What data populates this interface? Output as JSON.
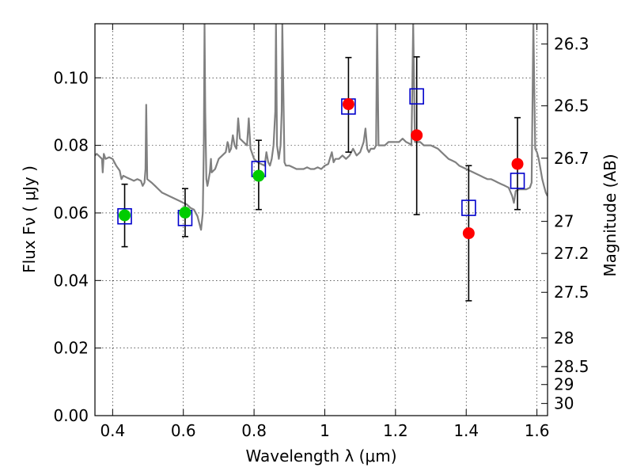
{
  "chart_data": {
    "type": "scatter",
    "xlabel": "Wavelength  λ (μm)",
    "ylabel": "Flux  Fν  ( μJy )",
    "y2label": "Magnitude (AB)",
    "xlim": [
      0.35,
      1.63
    ],
    "ylim": [
      0.0,
      0.116
    ],
    "grid": true,
    "x_ticks": [
      {
        "value": 0.4,
        "label": "0.4"
      },
      {
        "value": 0.6,
        "label": "0.6"
      },
      {
        "value": 0.8,
        "label": "0.8"
      },
      {
        "value": 1.0,
        "label": "1"
      },
      {
        "value": 1.2,
        "label": "1.2"
      },
      {
        "value": 1.4,
        "label": "1.4"
      },
      {
        "value": 1.6,
        "label": "1.6"
      }
    ],
    "y_ticks": [
      {
        "value": 0.0,
        "label": "0.00"
      },
      {
        "value": 0.02,
        "label": "0.02"
      },
      {
        "value": 0.04,
        "label": "0.04"
      },
      {
        "value": 0.06,
        "label": "0.06"
      },
      {
        "value": 0.08,
        "label": "0.08"
      },
      {
        "value": 0.1,
        "label": "0.10"
      }
    ],
    "y2_ticks": [
      {
        "flux": 0.11,
        "label": "26.3"
      },
      {
        "flux": 0.0917,
        "label": "26.5"
      },
      {
        "flux": 0.0762,
        "label": "26.7"
      },
      {
        "flux": 0.0575,
        "label": "27"
      },
      {
        "flux": 0.048,
        "label": "27.2"
      },
      {
        "flux": 0.0365,
        "label": "27.5"
      },
      {
        "flux": 0.023,
        "label": "28"
      },
      {
        "flux": 0.0145,
        "label": "28.5"
      },
      {
        "flux": 0.0092,
        "label": "29"
      },
      {
        "flux": 0.0036,
        "label": "30"
      }
    ],
    "series": [
      {
        "kind": "spectrum",
        "color": "#808080",
        "points": [
          [
            0.35,
            0.077
          ],
          [
            0.355,
            0.0775
          ],
          [
            0.36,
            0.077
          ],
          [
            0.365,
            0.0765
          ],
          [
            0.37,
            0.076
          ],
          [
            0.372,
            0.072
          ],
          [
            0.375,
            0.0775
          ],
          [
            0.38,
            0.076
          ],
          [
            0.39,
            0.0765
          ],
          [
            0.4,
            0.076
          ],
          [
            0.41,
            0.074
          ],
          [
            0.42,
            0.0725
          ],
          [
            0.425,
            0.07
          ],
          [
            0.43,
            0.071
          ],
          [
            0.44,
            0.0705
          ],
          [
            0.45,
            0.07
          ],
          [
            0.46,
            0.0695
          ],
          [
            0.47,
            0.07
          ],
          [
            0.48,
            0.0695
          ],
          [
            0.485,
            0.068
          ],
          [
            0.49,
            0.069
          ],
          [
            0.493,
            0.073
          ],
          [
            0.495,
            0.092
          ],
          [
            0.498,
            0.07
          ],
          [
            0.51,
            0.069
          ],
          [
            0.52,
            0.068
          ],
          [
            0.53,
            0.067
          ],
          [
            0.54,
            0.066
          ],
          [
            0.55,
            0.0655
          ],
          [
            0.56,
            0.065
          ],
          [
            0.57,
            0.0645
          ],
          [
            0.58,
            0.064
          ],
          [
            0.59,
            0.0635
          ],
          [
            0.6,
            0.063
          ],
          [
            0.61,
            0.0625
          ],
          [
            0.62,
            0.0615
          ],
          [
            0.63,
            0.061
          ],
          [
            0.64,
            0.059
          ],
          [
            0.645,
            0.057
          ],
          [
            0.65,
            0.055
          ],
          [
            0.655,
            0.06
          ],
          [
            0.658,
            0.08
          ],
          [
            0.66,
            0.116
          ],
          [
            0.662,
            0.09
          ],
          [
            0.665,
            0.07
          ],
          [
            0.668,
            0.068
          ],
          [
            0.67,
            0.069
          ],
          [
            0.675,
            0.072
          ],
          [
            0.678,
            0.076
          ],
          [
            0.68,
            0.072
          ],
          [
            0.69,
            0.073
          ],
          [
            0.7,
            0.076
          ],
          [
            0.71,
            0.077
          ],
          [
            0.72,
            0.078
          ],
          [
            0.725,
            0.081
          ],
          [
            0.728,
            0.08
          ],
          [
            0.73,
            0.078
          ],
          [
            0.735,
            0.079
          ],
          [
            0.74,
            0.083
          ],
          [
            0.745,
            0.08
          ],
          [
            0.75,
            0.079
          ],
          [
            0.755,
            0.088
          ],
          [
            0.76,
            0.082
          ],
          [
            0.77,
            0.081
          ],
          [
            0.78,
            0.08
          ],
          [
            0.785,
            0.088
          ],
          [
            0.79,
            0.079
          ],
          [
            0.8,
            0.076
          ],
          [
            0.81,
            0.075
          ],
          [
            0.82,
            0.0745
          ],
          [
            0.83,
            0.074
          ],
          [
            0.835,
            0.078
          ],
          [
            0.84,
            0.075
          ],
          [
            0.845,
            0.074
          ],
          [
            0.85,
            0.076
          ],
          [
            0.855,
            0.08
          ],
          [
            0.86,
            0.09
          ],
          [
            0.862,
            0.116
          ],
          [
            0.865,
            0.08
          ],
          [
            0.87,
            0.076
          ],
          [
            0.875,
            0.08
          ],
          [
            0.878,
            0.09
          ],
          [
            0.88,
            0.116
          ],
          [
            0.883,
            0.095
          ],
          [
            0.886,
            0.075
          ],
          [
            0.89,
            0.074
          ],
          [
            0.9,
            0.074
          ],
          [
            0.91,
            0.0735
          ],
          [
            0.92,
            0.073
          ],
          [
            0.93,
            0.073
          ],
          [
            0.94,
            0.073
          ],
          [
            0.95,
            0.0735
          ],
          [
            0.96,
            0.073
          ],
          [
            0.97,
            0.073
          ],
          [
            0.98,
            0.0735
          ],
          [
            0.99,
            0.073
          ],
          [
            1.0,
            0.074
          ],
          [
            1.01,
            0.0745
          ],
          [
            1.02,
            0.078
          ],
          [
            1.025,
            0.075
          ],
          [
            1.03,
            0.076
          ],
          [
            1.04,
            0.076
          ],
          [
            1.05,
            0.077
          ],
          [
            1.06,
            0.076
          ],
          [
            1.07,
            0.077
          ],
          [
            1.08,
            0.079
          ],
          [
            1.09,
            0.077
          ],
          [
            1.1,
            0.078
          ],
          [
            1.11,
            0.081
          ],
          [
            1.115,
            0.085
          ],
          [
            1.12,
            0.079
          ],
          [
            1.125,
            0.078
          ],
          [
            1.13,
            0.079
          ],
          [
            1.14,
            0.079
          ],
          [
            1.145,
            0.08
          ],
          [
            1.148,
            0.116
          ],
          [
            1.152,
            0.08
          ],
          [
            1.16,
            0.08
          ],
          [
            1.17,
            0.08
          ],
          [
            1.18,
            0.081
          ],
          [
            1.19,
            0.081
          ],
          [
            1.2,
            0.081
          ],
          [
            1.21,
            0.081
          ],
          [
            1.22,
            0.082
          ],
          [
            1.23,
            0.081
          ],
          [
            1.24,
            0.0805
          ],
          [
            1.245,
            0.08
          ],
          [
            1.25,
            0.116
          ],
          [
            1.255,
            0.081
          ],
          [
            1.26,
            0.081
          ],
          [
            1.27,
            0.081
          ],
          [
            1.28,
            0.08
          ],
          [
            1.29,
            0.08
          ],
          [
            1.3,
            0.08
          ],
          [
            1.31,
            0.0795
          ],
          [
            1.32,
            0.079
          ],
          [
            1.33,
            0.078
          ],
          [
            1.34,
            0.077
          ],
          [
            1.35,
            0.076
          ],
          [
            1.36,
            0.0755
          ],
          [
            1.37,
            0.075
          ],
          [
            1.38,
            0.074
          ],
          [
            1.39,
            0.0735
          ],
          [
            1.4,
            0.073
          ],
          [
            1.41,
            0.0725
          ],
          [
            1.42,
            0.072
          ],
          [
            1.43,
            0.0715
          ],
          [
            1.44,
            0.071
          ],
          [
            1.45,
            0.0705
          ],
          [
            1.46,
            0.07
          ],
          [
            1.47,
            0.07
          ],
          [
            1.48,
            0.0695
          ],
          [
            1.49,
            0.069
          ],
          [
            1.5,
            0.0685
          ],
          [
            1.51,
            0.068
          ],
          [
            1.52,
            0.0675
          ],
          [
            1.53,
            0.065
          ],
          [
            1.535,
            0.063
          ],
          [
            1.54,
            0.0665
          ],
          [
            1.55,
            0.067
          ],
          [
            1.56,
            0.067
          ],
          [
            1.57,
            0.067
          ],
          [
            1.58,
            0.0675
          ],
          [
            1.585,
            0.069
          ],
          [
            1.59,
            0.116
          ],
          [
            1.595,
            0.079
          ],
          [
            1.6,
            0.078
          ],
          [
            1.605,
            0.076
          ],
          [
            1.61,
            0.073
          ],
          [
            1.615,
            0.07
          ],
          [
            1.62,
            0.068
          ],
          [
            1.625,
            0.066
          ],
          [
            1.63,
            0.065
          ]
        ]
      },
      {
        "kind": "model-boxes",
        "color": "#0000cc",
        "x": [
          0.434,
          0.605,
          0.813,
          1.067,
          1.26,
          1.407,
          1.545
        ],
        "y": [
          0.059,
          0.0585,
          0.073,
          0.0915,
          0.0945,
          0.0615,
          0.0695
        ]
      },
      {
        "kind": "observed-optical",
        "color": "#00cc00",
        "x": [
          0.434,
          0.605,
          0.813
        ],
        "y": [
          0.0593,
          0.0601,
          0.071
        ],
        "yerr_low": [
          0.05,
          0.053,
          0.061
        ],
        "yerr_high": [
          0.0685,
          0.0672,
          0.0815
        ]
      },
      {
        "kind": "observed-nir",
        "color": "#ff0000",
        "x": [
          1.067,
          1.26,
          1.407,
          1.545
        ],
        "y": [
          0.0922,
          0.083,
          0.054,
          0.0745
        ],
        "yerr_low": [
          0.078,
          0.0595,
          0.034,
          0.061
        ],
        "yerr_high": [
          0.106,
          0.1062,
          0.074,
          0.0882
        ]
      }
    ]
  }
}
